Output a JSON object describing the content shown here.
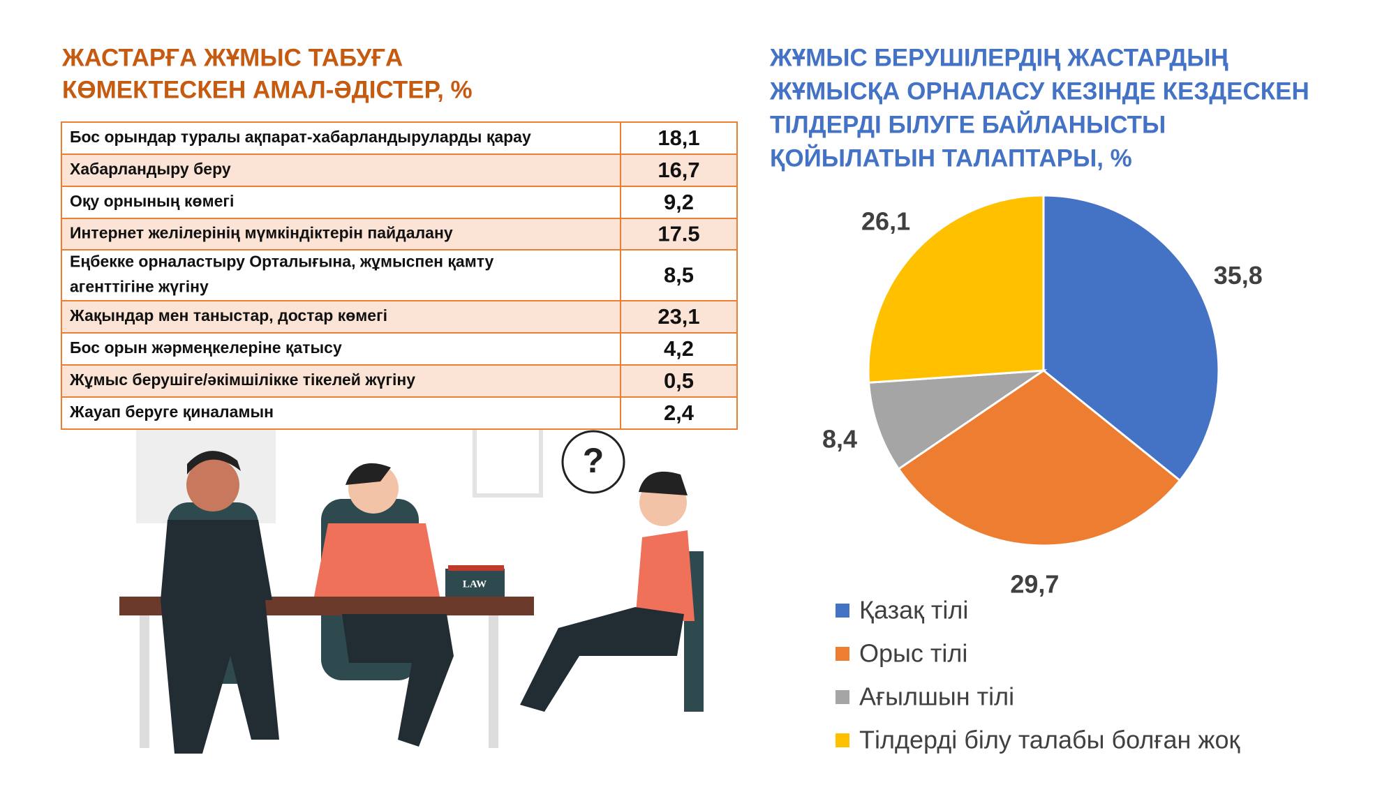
{
  "left": {
    "title": [
      "ЖАСТАРҒА ЖҰМЫС ТАБУҒА",
      "КӨМЕКТЕСКЕН АМАЛ-ӘДІСТЕР, %"
    ],
    "table": {
      "rows": [
        [
          [
            "Бос орындар туралы ақпарат-хабарландыруларды қарау"
          ],
          "18,1"
        ],
        [
          [
            "Хабарландыру беру"
          ],
          "16,7"
        ],
        [
          [
            "Оқу орнының көмегі"
          ],
          "9,2"
        ],
        [
          [
            "Интернет желілерінің мүмкіндіктерін пайдалану"
          ],
          "17.5"
        ],
        [
          [
            "Еңбекке орналастыру Орталығына, жұмыспен қамту",
            "агенттігіне жүгіну"
          ],
          "8,5"
        ],
        [
          [
            "Жақындар мен таныстар, достар көмегі"
          ],
          "23,1"
        ],
        [
          [
            "Бос орын жәрмеңкелеріне қатысу"
          ],
          "4,2"
        ],
        [
          [
            "Жұмыс берушіге/әкімшілікке тікелей жүгіну"
          ],
          "0,5"
        ],
        [
          [
            "Жауап беруге қиналамын"
          ],
          "2,4"
        ]
      ]
    },
    "illustration": {
      "bubble": "?",
      "book": "LAW"
    }
  },
  "chart_data": {
    "type": "pie",
    "title": [
      "ЖҰМЫС БЕРУШІЛЕРДІҢ ЖАСТАРДЫҢ",
      "ЖҰМЫСҚА ОРНАЛАСУ КЕЗІНДЕ КЕЗДЕСКЕН",
      "ТІЛДЕРДІ БІЛУГЕ БАЙЛАНЫСТЫ",
      "ҚОЙЫЛАТЫН ТАЛАПТАРЫ, %"
    ],
    "categories": [
      "Қазақ тілі",
      "Орыс тілі",
      "Ағылшын тілі",
      "Тілдерді білу талабы болған жоқ"
    ],
    "values": [
      35.8,
      29.7,
      8.4,
      26.1
    ],
    "value_labels": [
      "35,8",
      "29,7",
      "8,4",
      "26,1"
    ],
    "colors": [
      "#4472c4",
      "#ed7d31",
      "#a5a5a5",
      "#ffc000"
    ],
    "legend": "bottom"
  }
}
